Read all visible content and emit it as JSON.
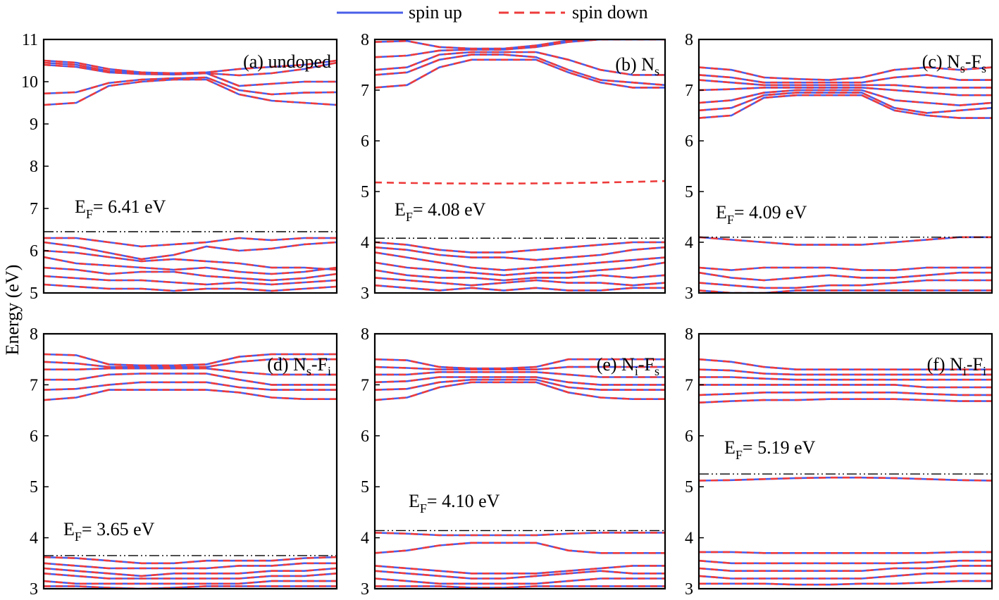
{
  "figure": {
    "ylabel": "Energy (eV)",
    "legend": {
      "up": "spin up",
      "down": "spin down"
    },
    "colors": {
      "up": "#4a5ee8",
      "down": "#ee3b3b",
      "ef_line": "#000000"
    }
  },
  "chart_data": [
    {
      "type": "line",
      "label_pre": "(a) undoped",
      "label_parts": [],
      "ef_value": 6.41,
      "ef_text": "6.41 eV",
      "ef_line": 6.45,
      "ylim": [
        5,
        11
      ],
      "yticks": [
        5,
        6,
        7,
        8,
        9,
        10,
        11
      ],
      "bands": [
        [
          9.45,
          9.5,
          9.9,
          10.0,
          10.05,
          10.05,
          9.7,
          9.55,
          9.5,
          9.45
        ],
        [
          9.72,
          9.75,
          9.97,
          10.05,
          10.08,
          10.1,
          9.8,
          9.7,
          9.74,
          9.75
        ],
        [
          10.4,
          10.35,
          10.22,
          10.18,
          10.17,
          10.2,
          9.9,
          9.95,
          10.0,
          10.0
        ],
        [
          10.45,
          10.4,
          10.25,
          10.2,
          10.2,
          10.2,
          10.15,
          10.2,
          10.3,
          10.45
        ],
        [
          10.5,
          10.45,
          10.3,
          10.22,
          10.2,
          10.22,
          10.3,
          10.35,
          10.4,
          10.5
        ],
        [
          6.3,
          6.3,
          6.2,
          6.1,
          6.15,
          6.2,
          6.3,
          6.25,
          6.3,
          6.3
        ],
        [
          6.2,
          6.1,
          5.95,
          5.8,
          5.9,
          6.1,
          6.0,
          6.05,
          6.15,
          6.2
        ],
        [
          6.0,
          5.95,
          5.85,
          5.75,
          5.8,
          5.75,
          5.7,
          5.6,
          5.6,
          5.55
        ],
        [
          5.85,
          5.7,
          5.65,
          5.6,
          5.55,
          5.6,
          5.5,
          5.45,
          5.5,
          5.6
        ],
        [
          5.6,
          5.55,
          5.45,
          5.5,
          5.5,
          5.4,
          5.35,
          5.3,
          5.35,
          5.45
        ],
        [
          5.4,
          5.35,
          5.3,
          5.3,
          5.25,
          5.2,
          5.25,
          5.2,
          5.25,
          5.3
        ],
        [
          5.2,
          5.15,
          5.1,
          5.1,
          5.05,
          5.1,
          5.1,
          5.05,
          5.1,
          5.15
        ]
      ]
    },
    {
      "type": "line",
      "label_pre": "(b) N",
      "label_parts": [
        {
          "t": "s",
          "sub": true
        }
      ],
      "ef_value": 4.08,
      "ef_text": "4.08 eV",
      "ef_line": 4.08,
      "ylim": [
        3,
        8
      ],
      "yticks": [
        3,
        4,
        5,
        6,
        7,
        8
      ],
      "defect_down": 5.18,
      "bands": [
        [
          7.05,
          7.1,
          7.45,
          7.6,
          7.6,
          7.6,
          7.35,
          7.15,
          7.05,
          7.05
        ],
        [
          7.3,
          7.35,
          7.6,
          7.7,
          7.7,
          7.65,
          7.4,
          7.2,
          7.15,
          7.1
        ],
        [
          7.4,
          7.45,
          7.7,
          7.75,
          7.75,
          7.75,
          7.6,
          7.4,
          7.3,
          7.3
        ],
        [
          7.65,
          7.68,
          7.78,
          7.8,
          7.8,
          7.85,
          7.95,
          8.0,
          8.0,
          8.0
        ],
        [
          7.95,
          7.97,
          7.85,
          7.82,
          7.82,
          7.88,
          7.98,
          8.0,
          8.0,
          8.0
        ],
        [
          4.0,
          3.95,
          3.85,
          3.8,
          3.8,
          3.85,
          3.9,
          3.95,
          4.0,
          4.0
        ],
        [
          3.9,
          3.85,
          3.75,
          3.7,
          3.7,
          3.65,
          3.7,
          3.75,
          3.85,
          3.9
        ],
        [
          3.8,
          3.7,
          3.6,
          3.5,
          3.45,
          3.5,
          3.55,
          3.6,
          3.65,
          3.7
        ],
        [
          3.6,
          3.5,
          3.45,
          3.4,
          3.35,
          3.4,
          3.4,
          3.45,
          3.5,
          3.6
        ],
        [
          3.45,
          3.35,
          3.3,
          3.3,
          3.25,
          3.3,
          3.3,
          3.35,
          3.3,
          3.35
        ],
        [
          3.3,
          3.25,
          3.2,
          3.15,
          3.2,
          3.25,
          3.2,
          3.2,
          3.15,
          3.2
        ],
        [
          3.15,
          3.1,
          3.05,
          3.1,
          3.05,
          3.1,
          3.05,
          3.05,
          3.1,
          3.1
        ]
      ]
    },
    {
      "type": "line",
      "label_pre": "(c) N",
      "label_parts": [
        {
          "t": "s",
          "sub": true
        },
        {
          "t": "-F",
          "sub": false
        },
        {
          "t": "s",
          "sub": true
        }
      ],
      "ef_value": 4.09,
      "ef_text": "4.09 eV",
      "ef_line": 4.1,
      "ylim": [
        3,
        8
      ],
      "yticks": [
        3,
        4,
        5,
        6,
        7,
        8
      ],
      "bands": [
        [
          6.45,
          6.5,
          6.85,
          6.9,
          6.9,
          6.9,
          6.6,
          6.5,
          6.45,
          6.45
        ],
        [
          6.6,
          6.65,
          6.9,
          6.95,
          6.95,
          6.95,
          6.65,
          6.55,
          6.6,
          6.65
        ],
        [
          6.75,
          6.8,
          6.95,
          7.0,
          7.0,
          7.0,
          6.8,
          6.75,
          6.7,
          6.75
        ],
        [
          7.0,
          7.02,
          7.05,
          7.05,
          7.05,
          7.05,
          7.0,
          6.95,
          6.9,
          6.9
        ],
        [
          7.2,
          7.15,
          7.1,
          7.1,
          7.1,
          7.1,
          7.1,
          7.05,
          7.05,
          7.05
        ],
        [
          7.3,
          7.25,
          7.15,
          7.15,
          7.15,
          7.15,
          7.25,
          7.3,
          7.2,
          7.2
        ],
        [
          7.45,
          7.4,
          7.25,
          7.22,
          7.2,
          7.25,
          7.4,
          7.45,
          7.4,
          7.45
        ],
        [
          4.1,
          4.05,
          4.0,
          3.95,
          3.95,
          3.95,
          4.0,
          4.05,
          4.1,
          4.1
        ],
        [
          3.5,
          3.45,
          3.5,
          3.5,
          3.5,
          3.45,
          3.45,
          3.5,
          3.5,
          3.5
        ],
        [
          3.4,
          3.3,
          3.25,
          3.3,
          3.35,
          3.3,
          3.3,
          3.35,
          3.4,
          3.4
        ],
        [
          3.2,
          3.15,
          3.1,
          3.1,
          3.15,
          3.15,
          3.2,
          3.25,
          3.25,
          3.25
        ],
        [
          3.05,
          3.0,
          3.0,
          3.05,
          3.05,
          3.05,
          3.05,
          3.05,
          3.05,
          3.05
        ]
      ]
    },
    {
      "type": "line",
      "label_pre": "(d) N",
      "label_parts": [
        {
          "t": "s",
          "sub": true
        },
        {
          "t": "-F",
          "sub": false
        },
        {
          "t": "i",
          "sub": true
        }
      ],
      "ef_value": 3.65,
      "ef_text": "3.65 eV",
      "ef_line": 3.65,
      "ylim": [
        3,
        8
      ],
      "yticks": [
        3,
        4,
        5,
        6,
        7,
        8
      ],
      "bands": [
        [
          6.7,
          6.75,
          6.9,
          6.9,
          6.9,
          6.9,
          6.85,
          6.75,
          6.72,
          6.72
        ],
        [
          6.9,
          6.92,
          7.0,
          7.05,
          7.05,
          7.05,
          6.95,
          6.9,
          6.9,
          6.9
        ],
        [
          7.1,
          7.1,
          7.2,
          7.22,
          7.22,
          7.22,
          7.1,
          7.0,
          7.0,
          7.0
        ],
        [
          7.3,
          7.3,
          7.32,
          7.32,
          7.32,
          7.32,
          7.25,
          7.2,
          7.2,
          7.2
        ],
        [
          7.45,
          7.42,
          7.35,
          7.35,
          7.35,
          7.35,
          7.45,
          7.5,
          7.5,
          7.5
        ],
        [
          7.6,
          7.58,
          7.4,
          7.38,
          7.38,
          7.4,
          7.55,
          7.6,
          7.6,
          7.6
        ],
        [
          3.62,
          3.6,
          3.55,
          3.5,
          3.5,
          3.55,
          3.55,
          3.55,
          3.6,
          3.62
        ],
        [
          3.5,
          3.45,
          3.4,
          3.4,
          3.4,
          3.4,
          3.45,
          3.45,
          3.5,
          3.5
        ],
        [
          3.4,
          3.35,
          3.3,
          3.25,
          3.3,
          3.3,
          3.3,
          3.35,
          3.35,
          3.4
        ],
        [
          3.3,
          3.25,
          3.2,
          3.2,
          3.2,
          3.2,
          3.2,
          3.25,
          3.25,
          3.3
        ],
        [
          3.15,
          3.1,
          3.1,
          3.1,
          3.1,
          3.1,
          3.1,
          3.15,
          3.15,
          3.15
        ],
        [
          3.05,
          3.05,
          3.02,
          3.0,
          3.02,
          3.05,
          3.05,
          3.05,
          3.05,
          3.05
        ]
      ]
    },
    {
      "type": "line",
      "label_pre": "(e) N",
      "label_parts": [
        {
          "t": "i",
          "sub": true
        },
        {
          "t": "-F",
          "sub": false
        },
        {
          "t": "s",
          "sub": true
        }
      ],
      "ef_value": 4.1,
      "ef_text": "4.10 eV",
      "ef_line": 4.14,
      "ylim": [
        3,
        8
      ],
      "yticks": [
        3,
        4,
        5,
        6,
        7,
        8
      ],
      "bands": [
        [
          6.7,
          6.75,
          6.95,
          7.05,
          7.05,
          7.05,
          6.85,
          6.75,
          6.72,
          6.72
        ],
        [
          6.9,
          6.92,
          7.05,
          7.1,
          7.1,
          7.1,
          6.95,
          6.9,
          6.9,
          6.9
        ],
        [
          7.05,
          7.07,
          7.15,
          7.15,
          7.15,
          7.15,
          7.05,
          7.0,
          7.0,
          7.0
        ],
        [
          7.2,
          7.2,
          7.25,
          7.25,
          7.25,
          7.25,
          7.2,
          7.15,
          7.15,
          7.15
        ],
        [
          7.35,
          7.33,
          7.3,
          7.3,
          7.3,
          7.3,
          7.35,
          7.35,
          7.35,
          7.35
        ],
        [
          7.5,
          7.48,
          7.35,
          7.32,
          7.32,
          7.35,
          7.5,
          7.5,
          7.5,
          7.5
        ],
        [
          4.1,
          4.08,
          4.05,
          4.05,
          4.05,
          4.05,
          4.08,
          4.1,
          4.1,
          4.1
        ],
        [
          3.7,
          3.75,
          3.85,
          3.9,
          3.9,
          3.9,
          3.75,
          3.7,
          3.7,
          3.7
        ],
        [
          3.45,
          3.4,
          3.35,
          3.3,
          3.3,
          3.3,
          3.35,
          3.4,
          3.45,
          3.45
        ],
        [
          3.35,
          3.3,
          3.25,
          3.2,
          3.2,
          3.25,
          3.3,
          3.35,
          3.3,
          3.3
        ],
        [
          3.2,
          3.15,
          3.1,
          3.1,
          3.1,
          3.1,
          3.15,
          3.2,
          3.2,
          3.2
        ],
        [
          3.05,
          3.05,
          3.05,
          3.02,
          3.02,
          3.05,
          3.05,
          3.05,
          3.05,
          3.05
        ]
      ]
    },
    {
      "type": "line",
      "label_pre": "(f) N",
      "label_parts": [
        {
          "t": "i",
          "sub": true
        },
        {
          "t": "-F",
          "sub": false
        },
        {
          "t": "i",
          "sub": true
        }
      ],
      "ef_value": 5.19,
      "ef_text": "5.19 eV",
      "ef_line": 5.25,
      "ylim": [
        3,
        8
      ],
      "yticks": [
        3,
        4,
        5,
        6,
        7,
        8
      ],
      "bands": [
        [
          6.65,
          6.68,
          6.7,
          6.7,
          6.72,
          6.72,
          6.72,
          6.7,
          6.68,
          6.68
        ],
        [
          6.8,
          6.82,
          6.85,
          6.85,
          6.85,
          6.85,
          6.85,
          6.82,
          6.8,
          6.8
        ],
        [
          7.0,
          7.0,
          7.0,
          7.0,
          7.0,
          7.0,
          7.0,
          6.95,
          6.95,
          6.95
        ],
        [
          7.15,
          7.15,
          7.12,
          7.1,
          7.1,
          7.1,
          7.1,
          7.1,
          7.1,
          7.1
        ],
        [
          7.3,
          7.28,
          7.22,
          7.2,
          7.2,
          7.2,
          7.2,
          7.2,
          7.2,
          7.2
        ],
        [
          7.5,
          7.45,
          7.35,
          7.3,
          7.3,
          7.3,
          7.3,
          7.3,
          7.3,
          7.3
        ],
        [
          5.12,
          5.13,
          5.15,
          5.17,
          5.18,
          5.18,
          5.17,
          5.15,
          5.13,
          5.12
        ],
        [
          3.72,
          3.72,
          3.7,
          3.7,
          3.7,
          3.7,
          3.7,
          3.7,
          3.72,
          3.72
        ],
        [
          3.55,
          3.5,
          3.5,
          3.5,
          3.5,
          3.5,
          3.5,
          3.52,
          3.55,
          3.55
        ],
        [
          3.4,
          3.35,
          3.35,
          3.35,
          3.35,
          3.35,
          3.4,
          3.4,
          3.45,
          3.45
        ],
        [
          3.25,
          3.2,
          3.2,
          3.2,
          3.2,
          3.2,
          3.25,
          3.3,
          3.3,
          3.3
        ],
        [
          3.1,
          3.1,
          3.1,
          3.08,
          3.08,
          3.1,
          3.1,
          3.12,
          3.15,
          3.15
        ]
      ]
    }
  ]
}
